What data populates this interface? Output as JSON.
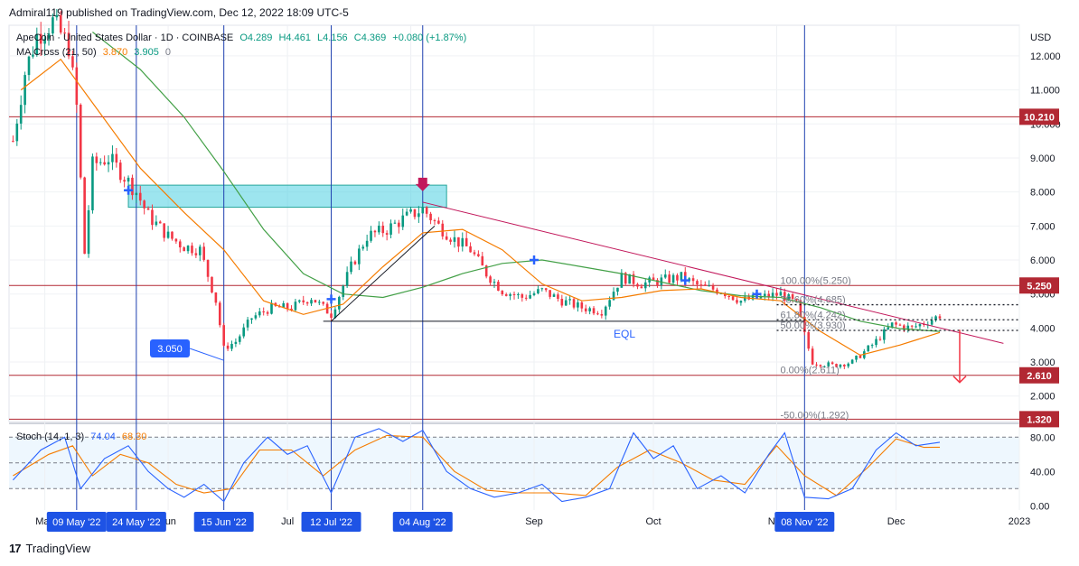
{
  "publish_line": "Admiral119 published on TradingView.com, Dec 12, 2022 18:09 UTC-5",
  "footer": {
    "brand": "TradingView",
    "logo_mark": "17"
  },
  "legend": {
    "symbol": "ApeCoin · United States Dollar · 1D · COINBASE",
    "open": "O4.289",
    "high": "H4.461",
    "low": "L4.156",
    "close": "C4.369",
    "change": "+0.080 (+1.87%)",
    "ma_label": "MA Cross (21, 50)",
    "ma_fast": "3.870",
    "ma_slow": "3.905",
    "ma_extra": "0",
    "stoch_label": "Stoch (14, 1, 3)",
    "stoch_k": "74.04",
    "stoch_d": "68.30"
  },
  "colors": {
    "bull": "#089981",
    "bear": "#f23645",
    "ma_fast": "#f57c00",
    "ma_slow": "#43a047",
    "stoch_k": "#2962ff",
    "stoch_d": "#f57c00",
    "level": "#b22833",
    "marker": "#2962ff",
    "zone": "#4dd0e1",
    "trend": "#c2185b"
  },
  "chart_data": {
    "type": "candlestick",
    "currency": "USD",
    "y_axis_ticks": [
      "12.000",
      "11.000",
      "10.000",
      "9.000",
      "8.000",
      "7.000",
      "6.000",
      "5.000",
      "4.000",
      "3.000",
      "2.000"
    ],
    "y_range": [
      1.25,
      12.9
    ],
    "x_axis_labels": [
      "May",
      "Jun",
      "Jul",
      "Aug",
      "Sep",
      "Oct",
      "Nov",
      "Dec",
      "2023"
    ],
    "x_axis_dates": [
      "2022-05-01",
      "2022-06-01",
      "2022-07-01",
      "2022-08-01",
      "2022-09-01",
      "2022-10-01",
      "2022-11-01",
      "2022-12-01",
      "2023-01-01"
    ],
    "date_range": [
      "2022-04-22",
      "2023-01-01"
    ],
    "levels": [
      {
        "label": "10.210",
        "price": 10.21
      },
      {
        "label": "5.250",
        "price": 5.25
      },
      {
        "label": "2.610",
        "price": 2.61
      },
      {
        "label": "1.320",
        "price": 1.32
      }
    ],
    "fibonacci": [
      {
        "label": "100.00%(5.250)",
        "price": 5.25
      },
      {
        "label": "78.60%(4.685)",
        "price": 4.685
      },
      {
        "label": "61.80%(4.242)",
        "price": 4.242
      },
      {
        "label": "50.00%(3.930)",
        "price": 3.93
      },
      {
        "label": "0.00%(2.611)",
        "price": 2.611
      },
      {
        "label": "-50.00%(1.292)",
        "price": 1.292
      }
    ],
    "event_markers": [
      {
        "label": "09 May '22",
        "date": "2022-05-09"
      },
      {
        "label": "24 May '22",
        "date": "2022-05-24"
      },
      {
        "label": "15 Jun '22",
        "date": "2022-06-15"
      },
      {
        "label": "12 Jul '22",
        "date": "2022-07-12"
      },
      {
        "label": "04 Aug '22",
        "date": "2022-08-04"
      },
      {
        "label": "08 Nov '22",
        "date": "2022-11-08"
      }
    ],
    "annotations": [
      {
        "text": "EQL",
        "date": "2022-09-21",
        "price": 3.72
      },
      {
        "text": "3.050",
        "date": "2022-06-01",
        "price": 3.4
      }
    ],
    "supply_zone": {
      "from_date": "2022-05-22",
      "to_date": "2022-08-10",
      "top": 8.2,
      "bottom": 7.55
    },
    "trendline": {
      "from": {
        "date": "2022-08-04",
        "price": 7.7
      },
      "to": {
        "date": "2022-12-28",
        "price": 3.55
      }
    },
    "support_line": {
      "from": {
        "date": "2022-07-10",
        "price": 4.2
      },
      "to": {
        "date": "2022-11-08",
        "price": 4.2
      }
    },
    "up_line": {
      "from": {
        "date": "2022-07-12",
        "price": 4.2
      },
      "to": {
        "date": "2022-08-07",
        "price": 7.0
      }
    },
    "dotted_levels": [
      4.685,
      4.242,
      3.93
    ],
    "down_arrow": {
      "date": "2022-12-17",
      "from": 3.95,
      "to": 2.4
    },
    "top_arrow": {
      "date": "2022-08-04",
      "price": 8.1
    },
    "price_points": [
      [
        "2022-04-23",
        9.5
      ],
      [
        "2022-04-26",
        11.5
      ],
      [
        "2022-04-29",
        12.6
      ],
      [
        "2022-05-03",
        13.0
      ],
      [
        "2022-05-07",
        12.3
      ],
      [
        "2022-05-09",
        10.5
      ],
      [
        "2022-05-11",
        6.2
      ],
      [
        "2022-05-13",
        8.8
      ],
      [
        "2022-05-17",
        9.0
      ],
      [
        "2022-05-20",
        8.6
      ],
      [
        "2022-05-24",
        8.0
      ],
      [
        "2022-05-27",
        7.3
      ],
      [
        "2022-06-01",
        6.7
      ],
      [
        "2022-06-05",
        6.4
      ],
      [
        "2022-06-09",
        6.3
      ],
      [
        "2022-06-13",
        4.8
      ],
      [
        "2022-06-15",
        3.4
      ],
      [
        "2022-06-18",
        3.6
      ],
      [
        "2022-06-22",
        4.3
      ],
      [
        "2022-06-27",
        4.6
      ],
      [
        "2022-07-02",
        4.6
      ],
      [
        "2022-07-07",
        4.9
      ],
      [
        "2022-07-12",
        4.4
      ],
      [
        "2022-07-17",
        5.8
      ],
      [
        "2022-07-21",
        6.7
      ],
      [
        "2022-07-26",
        6.9
      ],
      [
        "2022-07-30",
        7.2
      ],
      [
        "2022-08-04",
        7.5
      ],
      [
        "2022-08-08",
        7.0
      ],
      [
        "2022-08-12",
        6.6
      ],
      [
        "2022-08-16",
        6.3
      ],
      [
        "2022-08-20",
        5.6
      ],
      [
        "2022-08-24",
        5.1
      ],
      [
        "2022-08-29",
        4.9
      ],
      [
        "2022-09-03",
        5.1
      ],
      [
        "2022-09-08",
        4.8
      ],
      [
        "2022-09-13",
        4.6
      ],
      [
        "2022-09-18",
        4.5
      ],
      [
        "2022-09-23",
        5.5
      ],
      [
        "2022-09-28",
        5.3
      ],
      [
        "2022-10-03",
        5.4
      ],
      [
        "2022-10-08",
        5.5
      ],
      [
        "2022-10-13",
        5.2
      ],
      [
        "2022-10-18",
        5.1
      ],
      [
        "2022-10-23",
        4.8
      ],
      [
        "2022-10-28",
        4.9
      ],
      [
        "2022-11-02",
        5.0
      ],
      [
        "2022-11-06",
        4.7
      ],
      [
        "2022-11-08",
        3.8
      ],
      [
        "2022-11-10",
        3.0
      ],
      [
        "2022-11-15",
        2.9
      ],
      [
        "2022-11-20",
        3.0
      ],
      [
        "2022-11-25",
        3.5
      ],
      [
        "2022-11-30",
        4.1
      ],
      [
        "2022-12-05",
        4.0
      ],
      [
        "2022-12-09",
        4.2
      ],
      [
        "2022-12-12",
        4.37
      ]
    ],
    "ma_fast_points": [
      [
        "2022-04-25",
        11.0
      ],
      [
        "2022-05-05",
        11.9
      ],
      [
        "2022-05-15",
        10.3
      ],
      [
        "2022-05-25",
        8.7
      ],
      [
        "2022-06-05",
        7.4
      ],
      [
        "2022-06-15",
        6.3
      ],
      [
        "2022-06-25",
        4.8
      ],
      [
        "2022-07-05",
        4.4
      ],
      [
        "2022-07-15",
        4.7
      ],
      [
        "2022-07-25",
        5.8
      ],
      [
        "2022-08-04",
        6.8
      ],
      [
        "2022-08-14",
        6.9
      ],
      [
        "2022-08-24",
        6.3
      ],
      [
        "2022-09-03",
        5.3
      ],
      [
        "2022-09-13",
        4.8
      ],
      [
        "2022-09-23",
        4.9
      ],
      [
        "2022-10-03",
        5.1
      ],
      [
        "2022-10-13",
        5.15
      ],
      [
        "2022-10-23",
        4.9
      ],
      [
        "2022-11-02",
        4.8
      ],
      [
        "2022-11-12",
        3.9
      ],
      [
        "2022-11-22",
        3.2
      ],
      [
        "2022-12-02",
        3.5
      ],
      [
        "2022-12-12",
        3.87
      ]
    ],
    "ma_slow_points": [
      [
        "2022-05-13",
        12.7
      ],
      [
        "2022-05-25",
        11.6
      ],
      [
        "2022-06-05",
        10.2
      ],
      [
        "2022-06-15",
        8.6
      ],
      [
        "2022-06-25",
        6.9
      ],
      [
        "2022-07-05",
        5.6
      ],
      [
        "2022-07-15",
        5.0
      ],
      [
        "2022-07-25",
        4.9
      ],
      [
        "2022-08-04",
        5.2
      ],
      [
        "2022-08-14",
        5.6
      ],
      [
        "2022-08-24",
        5.9
      ],
      [
        "2022-09-03",
        6.0
      ],
      [
        "2022-09-13",
        5.8
      ],
      [
        "2022-09-23",
        5.6
      ],
      [
        "2022-10-03",
        5.35
      ],
      [
        "2022-10-13",
        5.1
      ],
      [
        "2022-10-23",
        4.95
      ],
      [
        "2022-11-02",
        4.9
      ],
      [
        "2022-11-12",
        4.6
      ],
      [
        "2022-11-22",
        4.2
      ],
      [
        "2022-12-02",
        3.98
      ],
      [
        "2022-12-12",
        3.9
      ]
    ],
    "cross_markers": [
      {
        "date": "2022-05-22",
        "price": 8.05
      },
      {
        "date": "2022-07-12",
        "price": 4.85
      },
      {
        "date": "2022-09-01",
        "price": 6.0
      },
      {
        "date": "2022-10-09",
        "price": 5.4
      },
      {
        "date": "2022-10-27",
        "price": 5.0
      }
    ],
    "stoch": {
      "range": [
        -5,
        95
      ],
      "ticks": [
        "80.00",
        "40.00",
        "0.00"
      ],
      "bands": [
        80,
        50,
        20
      ],
      "k_points": [
        [
          "2022-04-23",
          30
        ],
        [
          "2022-04-30",
          65
        ],
        [
          "2022-05-06",
          80
        ],
        [
          "2022-05-10",
          20
        ],
        [
          "2022-05-16",
          55
        ],
        [
          "2022-05-22",
          70
        ],
        [
          "2022-05-27",
          40
        ],
        [
          "2022-06-01",
          20
        ],
        [
          "2022-06-05",
          10
        ],
        [
          "2022-06-10",
          25
        ],
        [
          "2022-06-15",
          5
        ],
        [
          "2022-06-20",
          50
        ],
        [
          "2022-06-26",
          80
        ],
        [
          "2022-07-01",
          60
        ],
        [
          "2022-07-06",
          70
        ],
        [
          "2022-07-12",
          15
        ],
        [
          "2022-07-18",
          80
        ],
        [
          "2022-07-24",
          90
        ],
        [
          "2022-07-30",
          75
        ],
        [
          "2022-08-04",
          88
        ],
        [
          "2022-08-10",
          40
        ],
        [
          "2022-08-16",
          20
        ],
        [
          "2022-08-22",
          10
        ],
        [
          "2022-08-28",
          15
        ],
        [
          "2022-09-03",
          25
        ],
        [
          "2022-09-08",
          5
        ],
        [
          "2022-09-14",
          10
        ],
        [
          "2022-09-20",
          20
        ],
        [
          "2022-09-26",
          85
        ],
        [
          "2022-10-01",
          55
        ],
        [
          "2022-10-06",
          70
        ],
        [
          "2022-10-12",
          20
        ],
        [
          "2022-10-18",
          35
        ],
        [
          "2022-10-24",
          15
        ],
        [
          "2022-10-30",
          60
        ],
        [
          "2022-11-03",
          85
        ],
        [
          "2022-11-08",
          10
        ],
        [
          "2022-11-14",
          8
        ],
        [
          "2022-11-20",
          20
        ],
        [
          "2022-11-26",
          65
        ],
        [
          "2022-12-01",
          85
        ],
        [
          "2022-12-06",
          70
        ],
        [
          "2022-12-12",
          74
        ]
      ],
      "d_points": [
        [
          "2022-04-23",
          35
        ],
        [
          "2022-05-02",
          60
        ],
        [
          "2022-05-08",
          70
        ],
        [
          "2022-05-13",
          35
        ],
        [
          "2022-05-20",
          60
        ],
        [
          "2022-05-27",
          50
        ],
        [
          "2022-06-03",
          25
        ],
        [
          "2022-06-10",
          15
        ],
        [
          "2022-06-17",
          20
        ],
        [
          "2022-06-24",
          65
        ],
        [
          "2022-07-02",
          65
        ],
        [
          "2022-07-10",
          35
        ],
        [
          "2022-07-18",
          65
        ],
        [
          "2022-07-26",
          82
        ],
        [
          "2022-08-04",
          80
        ],
        [
          "2022-08-12",
          40
        ],
        [
          "2022-08-20",
          18
        ],
        [
          "2022-08-28",
          15
        ],
        [
          "2022-09-06",
          15
        ],
        [
          "2022-09-14",
          12
        ],
        [
          "2022-09-22",
          45
        ],
        [
          "2022-09-30",
          65
        ],
        [
          "2022-10-08",
          50
        ],
        [
          "2022-10-16",
          30
        ],
        [
          "2022-10-24",
          25
        ],
        [
          "2022-11-01",
          70
        ],
        [
          "2022-11-08",
          35
        ],
        [
          "2022-11-16",
          12
        ],
        [
          "2022-11-24",
          45
        ],
        [
          "2022-12-01",
          78
        ],
        [
          "2022-12-08",
          68
        ],
        [
          "2022-12-12",
          68.3
        ]
      ]
    }
  }
}
